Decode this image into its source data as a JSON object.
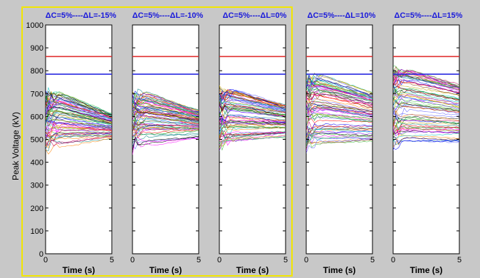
{
  "chart_data": {
    "type": "line",
    "ylabel": "Peak Voltage (kV)",
    "xlabel": "Time (s)",
    "ylim": [
      0,
      1000
    ],
    "yticks": [
      0,
      100,
      200,
      300,
      400,
      500,
      600,
      700,
      800,
      900,
      1000
    ],
    "xlim": [
      0,
      5
    ],
    "xticks": [
      0,
      5
    ],
    "reference_lines": [
      {
        "color": "#e03030",
        "y": 862
      },
      {
        "color": "#2a2ae0",
        "y": 785
      }
    ],
    "highlight_box_color": "#f2e600",
    "highlighted_panels": [
      0,
      1,
      2
    ],
    "panels": [
      {
        "title": "ΔC=5%----ΔL=-15%",
        "band_start": [
          460,
          700
        ],
        "band_end": [
          500,
          610
        ]
      },
      {
        "title": "ΔC=5%----ΔL=-10%",
        "band_start": [
          470,
          690
        ],
        "band_end": [
          505,
          625
        ]
      },
      {
        "title": "ΔC=5%----ΔL=0%",
        "band_start": [
          470,
          710
        ],
        "band_end": [
          505,
          650
        ]
      },
      {
        "title": "ΔC=5%----ΔL=10%",
        "band_start": [
          470,
          770
        ],
        "band_end": [
          490,
          700
        ]
      },
      {
        "title": "ΔC=5%----ΔL=15%",
        "band_start": [
          470,
          800
        ],
        "band_end": [
          480,
          740
        ]
      }
    ]
  }
}
